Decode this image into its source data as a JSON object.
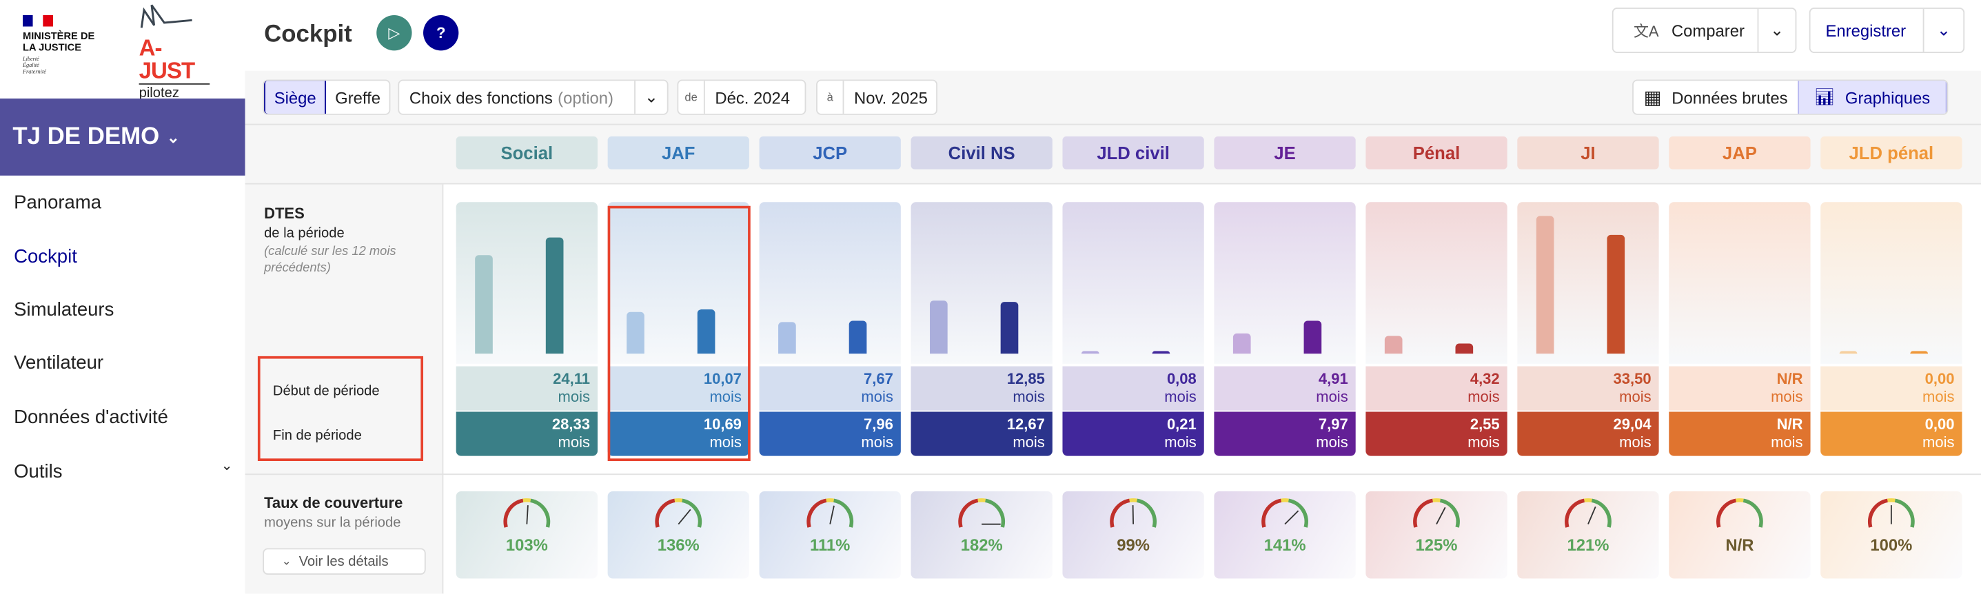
{
  "logos": {
    "ministere": "MINISTÈRE DE LA JUSTICE",
    "devise": [
      "Liberté",
      "Égalité",
      "Fraternité"
    ],
    "ajust": "A-JUST",
    "ajust_tagline": "pilotez votre juridiction"
  },
  "sidebar": {
    "jurisdiction": "TJ DE DEMO",
    "items": [
      {
        "label": "Panorama"
      },
      {
        "label": "Cockpit"
      },
      {
        "label": "Simulateurs"
      },
      {
        "label": "Ventilateur"
      },
      {
        "label": "Données d'activité"
      },
      {
        "label": "Outils"
      }
    ]
  },
  "header": {
    "title": "Cockpit",
    "help": "?",
    "compare": "Comparer",
    "save": "Enregistrer"
  },
  "toolbar": {
    "siege": "Siège",
    "greffe": "Greffe",
    "fonctions": "Choix des fonctions",
    "fonctions_hint": "(option)",
    "from_label": "de",
    "from": "Déc. 2024",
    "to_label": "à",
    "to": "Nov. 2025",
    "raw": "Données brutes",
    "charts": "Graphiques"
  },
  "dtes": {
    "title": "DTES",
    "subtitle": "de la période",
    "note": "(calculé sur les 12 mois précédents)",
    "start_label": "Début de période",
    "end_label": "Fin de période",
    "unit": "mois"
  },
  "coverage": {
    "title": "Taux de couverture",
    "subtitle": "moyens sur la période",
    "details": "Voir les détails"
  },
  "columns": [
    {
      "name": "Social",
      "start": "24,11",
      "end": "28,33",
      "sv": 24.11,
      "ev": 28.33,
      "cov": "103%",
      "cv": 103,
      "hbg": "#d9e6e6",
      "fg": "#3a7f87",
      "light": "#a6c8cb",
      "lbg": "#d9e6e6"
    },
    {
      "name": "JAF",
      "start": "10,07",
      "end": "10,69",
      "sv": 10.07,
      "ev": 10.69,
      "cov": "136%",
      "cv": 136,
      "hbg": "#d4e1f0",
      "fg": "#3177b8",
      "light": "#adc8e6",
      "lbg": "#d4e1f0"
    },
    {
      "name": "JCP",
      "start": "7,67",
      "end": "7,96",
      "sv": 7.67,
      "ev": 7.96,
      "cov": "111%",
      "cv": 111,
      "hbg": "#d4def0",
      "fg": "#2f63b8",
      "light": "#aac0e6",
      "lbg": "#d4def0"
    },
    {
      "name": "Civil NS",
      "start": "12,85",
      "end": "12,67",
      "sv": 12.85,
      "ev": 12.67,
      "cov": "182%",
      "cv": 182,
      "hbg": "#d7d8ea",
      "fg": "#2b348c",
      "light": "#aaaedb",
      "lbg": "#d7d8ea"
    },
    {
      "name": "JLD civil",
      "start": "0,08",
      "end": "0,21",
      "sv": 0.08,
      "ev": 0.21,
      "cov": "99%",
      "cv": 99,
      "hbg": "#dcd7ec",
      "fg": "#41279b",
      "light": "#b5aade",
      "lbg": "#dcd7ec"
    },
    {
      "name": "JE",
      "start": "4,91",
      "end": "7,97",
      "sv": 4.91,
      "ev": 7.97,
      "cov": "141%",
      "cv": 141,
      "hbg": "#e2d6ec",
      "fg": "#632096",
      "light": "#c4aadc",
      "lbg": "#e2d6ec"
    },
    {
      "name": "Pénal",
      "start": "4,32",
      "end": "2,55",
      "sv": 4.32,
      "ev": 2.55,
      "cov": "125%",
      "cv": 125,
      "hbg": "#f2d7d8",
      "fg": "#b53532",
      "light": "#e4a9a8",
      "lbg": "#f2d7d8"
    },
    {
      "name": "JI",
      "start": "33,50",
      "end": "29,04",
      "sv": 33.5,
      "ev": 29.04,
      "cov": "121%",
      "cv": 121,
      "hbg": "#f4ddd6",
      "fg": "#c54f2b",
      "light": "#e8b2a3",
      "lbg": "#f4ddd6"
    },
    {
      "name": "JAP",
      "start": "N/R",
      "end": "N/R",
      "sv": null,
      "ev": null,
      "cov": "N/R",
      "cv": null,
      "hbg": "#fbe3d6",
      "fg": "#e0742f",
      "light": "#f2c0a0",
      "lbg": "#fbe3d6"
    },
    {
      "name": "JLD pénal",
      "start": "0,00",
      "end": "0,00",
      "sv": 0,
      "ev": 0,
      "cov": "100%",
      "cv": 100,
      "hbg": "#fcebd9",
      "fg": "#ef9738",
      "light": "#f6cf9e",
      "lbg": "#fcebd9"
    }
  ],
  "colors": {
    "primary": "#000091",
    "sidebar_purple": "#524f9b",
    "play_green": "#3f8a7d",
    "highlight": "#e8432e",
    "gauge_good": "#5aa55c",
    "gauge_neutral": "#6b5a2e"
  }
}
